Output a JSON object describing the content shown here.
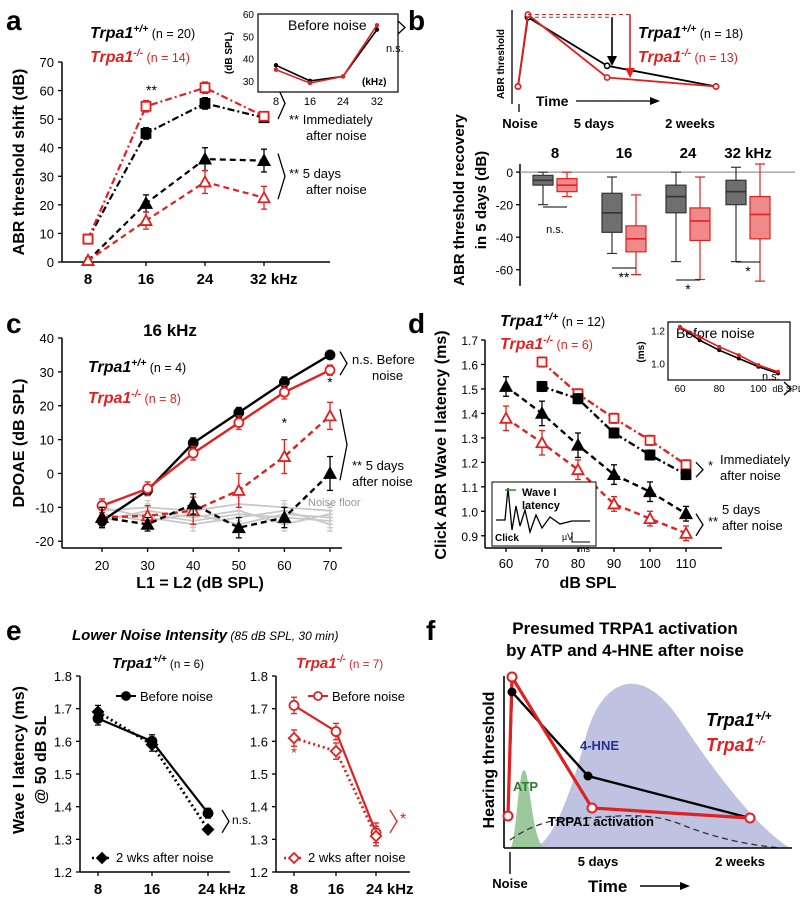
{
  "colors": {
    "wt": "#000000",
    "ko": "#e32020",
    "ko_fill": "#f08a8a",
    "wt_fill": "#6f6f6f",
    "floor": "#c8c8c8",
    "atp": "#9dc89d",
    "hne": "#a9aed6",
    "axis": "#000000",
    "grid_ref": "#999999"
  },
  "chart_data": [
    {
      "panel": "a",
      "type": "line",
      "ylabel": "ABR threshold shift (dB)",
      "categories": [
        "8",
        "16",
        "24",
        "32 kHz"
      ],
      "ylim": [
        0,
        70
      ],
      "yticks": [
        "0",
        "10",
        "20",
        "30",
        "40",
        "50",
        "60",
        "70"
      ],
      "legend": [
        {
          "name": "Trpa1",
          "sup": "+/+",
          "n": "(n = 20)"
        },
        {
          "name": "Trpa1",
          "sup": "-/-",
          "n": "(n = 14)"
        }
      ],
      "series": [
        {
          "name": "WT immediately after noise",
          "group": "wt",
          "marker": "square-filled",
          "style": "dashdot",
          "values": [
            8,
            45,
            55.5,
            50.5
          ],
          "errors": [
            1.5,
            2,
            2,
            1.5
          ]
        },
        {
          "name": "KO immediately after noise",
          "group": "ko",
          "marker": "square-open",
          "style": "dashdot",
          "values": [
            8,
            54.5,
            61,
            51
          ],
          "errors": [
            1.5,
            2,
            2,
            1.5
          ]
        },
        {
          "name": "WT 5 days after noise",
          "group": "wt",
          "marker": "triangle-filled",
          "style": "dashed",
          "values": [
            0.5,
            20.5,
            36,
            35.5
          ],
          "errors": [
            1,
            3,
            4,
            4
          ]
        },
        {
          "name": "KO 5 days after noise",
          "group": "ko",
          "marker": "triangle-open",
          "style": "dashed",
          "values": [
            0.5,
            14.5,
            28,
            22.5
          ],
          "errors": [
            1,
            3,
            4,
            4
          ]
        }
      ],
      "annotations": {
        "sig16": "**",
        "imm_sig": "**",
        "imm_label": [
          "Immediately",
          "after noise"
        ],
        "d5_sig": "**",
        "d5_label": [
          "5 days",
          "after noise"
        ]
      },
      "inset": {
        "title": "Before noise",
        "ylabel": "(dB SPL)",
        "xlabel": "(kHz)",
        "categories": [
          "8",
          "16",
          "24",
          "32"
        ],
        "ylim": [
          25,
          60
        ],
        "yticks": [
          "30",
          "40",
          "50",
          "60"
        ],
        "sig": "n.s.",
        "series": [
          {
            "group": "wt",
            "values": [
              37,
              30,
              32,
              53
            ]
          },
          {
            "group": "ko",
            "values": [
              35,
              29,
              32,
              55
            ]
          }
        ]
      }
    },
    {
      "panel": "b-top",
      "type": "line",
      "ylabel": "ABR threshold",
      "xlabel": "Time",
      "xticks": [
        "Noise",
        "5 days",
        "2 weeks"
      ],
      "legend": [
        {
          "name": "Trpa1",
          "sup": "+/+",
          "n": "(n = 18)"
        },
        {
          "name": "Trpa1",
          "sup": "-/-",
          "n": "(n = 13)"
        }
      ],
      "series": [
        {
          "group": "wt",
          "points": [
            [
              0,
              15
            ],
            [
              0.05,
              92
            ],
            [
              0.45,
              38
            ],
            [
              1,
              15
            ]
          ]
        },
        {
          "group": "ko",
          "points": [
            [
              0,
              15
            ],
            [
              0.05,
              95
            ],
            [
              0.45,
              25
            ],
            [
              1,
              15
            ]
          ]
        }
      ]
    },
    {
      "panel": "b-bottom",
      "type": "box",
      "ylabel": [
        "ABR threshold recovery",
        "in 5 days (dB)"
      ],
      "categories": [
        "8",
        "16",
        "24",
        "32 kHz"
      ],
      "ylim": [
        -70,
        5
      ],
      "yticks": [
        "-60",
        "-40",
        "-20",
        "0"
      ],
      "boxes": [
        {
          "group": "wt",
          "cat": 0,
          "min": -20,
          "q1": -8,
          "med": -5,
          "q3": -2,
          "max": 0
        },
        {
          "group": "ko",
          "cat": 0,
          "min": -15,
          "q1": -12,
          "med": -8,
          "q3": -4,
          "max": 0
        },
        {
          "group": "wt",
          "cat": 1,
          "min": -50,
          "q1": -37,
          "med": -25,
          "q3": -13,
          "max": -3
        },
        {
          "group": "ko",
          "cat": 1,
          "min": -63,
          "q1": -49,
          "med": -41,
          "q3": -33,
          "max": -14
        },
        {
          "group": "wt",
          "cat": 2,
          "min": -55,
          "q1": -25,
          "med": -15,
          "q3": -8,
          "max": 0
        },
        {
          "group": "ko",
          "cat": 2,
          "min": -66,
          "q1": -42,
          "med": -30,
          "q3": -22,
          "max": -3
        },
        {
          "group": "wt",
          "cat": 3,
          "min": -55,
          "q1": -20,
          "med": -12,
          "q3": -5,
          "max": 3
        },
        {
          "group": "ko",
          "cat": 3,
          "min": -67,
          "q1": -41,
          "med": -26,
          "q3": -15,
          "max": 5
        }
      ],
      "significance": [
        "n.s.",
        "**",
        "*",
        "*"
      ]
    },
    {
      "panel": "c",
      "type": "line",
      "title": "16 kHz",
      "ylabel": "DPOAE (dB SPL)",
      "xlabel": "L1 = L2 (dB SPL)",
      "x": [
        20,
        30,
        40,
        50,
        60,
        70
      ],
      "xlim": [
        15,
        75
      ],
      "ylim": [
        -22,
        40
      ],
      "yticks": [
        "-20",
        "-10",
        "0",
        "10",
        "20",
        "30",
        "40"
      ],
      "xticks": [
        "20",
        "30",
        "40",
        "50",
        "60",
        "70"
      ],
      "legend": [
        {
          "name": "Trpa1",
          "sup": "+/+",
          "n": "(n = 4)"
        },
        {
          "name": "Trpa1",
          "sup": "-/-",
          "n": "(n = 8)"
        }
      ],
      "series": [
        {
          "name": "WT before noise",
          "group": "wt",
          "marker": "circle-filled",
          "style": "solid",
          "values": [
            -14,
            -5,
            9,
            18,
            27,
            35
          ],
          "errors": [
            1.5,
            1.5,
            1.5,
            1.5,
            1.5,
            1
          ]
        },
        {
          "name": "KO before noise",
          "group": "ko",
          "marker": "circle-open",
          "style": "solid",
          "values": [
            -9.5,
            -4.5,
            6,
            15,
            24,
            30.5
          ],
          "errors": [
            2,
            2,
            2,
            2,
            2,
            1.5
          ]
        },
        {
          "name": "KO 5 days after noise",
          "group": "ko",
          "marker": "triangle-open",
          "style": "dashed",
          "values": [
            -13,
            -12.5,
            -11,
            -5,
            5,
            17
          ],
          "errors": [
            3,
            3,
            4,
            5,
            5,
            4
          ]
        },
        {
          "name": "WT 5 days after noise",
          "group": "wt",
          "marker": "triangle-filled",
          "style": "dashed",
          "values": [
            -13,
            -15,
            -9,
            -16,
            -13,
            0
          ],
          "errors": [
            3,
            2,
            3,
            3,
            3,
            5
          ]
        }
      ],
      "noise_floor": {
        "label": "Noise floor",
        "lines": [
          [
            -11,
            -10,
            -11,
            -9,
            -10,
            -11
          ],
          [
            -13,
            -12,
            -14,
            -12,
            -13,
            -14
          ],
          [
            -12,
            -14,
            -12,
            -15,
            -12,
            -13
          ],
          [
            -14,
            -11,
            -13,
            -11,
            -15,
            -12
          ],
          [
            -10,
            -13,
            -15,
            -13,
            -11,
            -15
          ]
        ]
      },
      "annotations": {
        "before_sig": "n.s.",
        "before_label": [
          "Before",
          "noise"
        ],
        "d5_sig": "**",
        "d5_label": [
          "5 days",
          "after noise"
        ],
        "star60": "*",
        "star70": "*"
      }
    },
    {
      "panel": "d",
      "type": "line",
      "ylabel": "Click ABR Wave I latency (ms)",
      "xlabel": "dB SPL",
      "x": [
        60,
        70,
        80,
        90,
        100,
        110
      ],
      "xlim": [
        55,
        115
      ],
      "ylim": [
        0.85,
        1.7
      ],
      "yticks": [
        "0.9",
        "1.0",
        "1.1",
        "1.2",
        "1.3",
        "1.4",
        "1.5",
        "1.6",
        "1.7"
      ],
      "xticks": [
        "60",
        "70",
        "80",
        "90",
        "100",
        "110"
      ],
      "legend": [
        {
          "name": "Trpa1",
          "sup": "+/+",
          "n": "(n = 12)"
        },
        {
          "name": "Trpa1",
          "sup": "-/-",
          "n": "(n = 6)"
        }
      ],
      "series": [
        {
          "name": "KO immediately after noise",
          "group": "ko",
          "marker": "square-open",
          "style": "dashdot",
          "values": [
            null,
            1.61,
            1.48,
            1.38,
            1.29,
            1.19
          ],
          "errors": [
            0,
            0.02,
            0.02,
            0.02,
            0.02,
            0.02
          ]
        },
        {
          "name": "WT immediately after noise",
          "group": "wt",
          "marker": "square-filled",
          "style": "dashdot",
          "values": [
            null,
            1.51,
            1.46,
            1.32,
            1.23,
            1.15
          ],
          "errors": [
            0,
            0.02,
            0.02,
            0.02,
            0.02,
            0.02
          ]
        },
        {
          "name": "WT 5 days after noise",
          "group": "wt",
          "marker": "triangle-filled",
          "style": "dashed",
          "values": [
            1.51,
            1.4,
            1.27,
            1.15,
            1.08,
            0.99
          ],
          "errors": [
            0.04,
            0.05,
            0.05,
            0.04,
            0.04,
            0.03
          ]
        },
        {
          "name": "KO 5 days after noise",
          "group": "ko",
          "marker": "triangle-open",
          "style": "dashed",
          "values": [
            1.38,
            1.28,
            1.17,
            1.03,
            0.97,
            0.91
          ],
          "errors": [
            0.05,
            0.05,
            0.04,
            0.03,
            0.03,
            0.03
          ]
        }
      ],
      "annotations": {
        "imm_sig": "*",
        "imm_label": [
          "Immediately",
          "after noise"
        ],
        "d5_sig": "**",
        "d5_label": [
          "5 days",
          "after noise"
        ]
      },
      "inset": {
        "title": "Before noise",
        "ylabel": "(ms)",
        "xlabel": "dB SPL",
        "sig": "n.s.",
        "x": [
          60,
          70,
          80,
          90,
          100,
          110
        ],
        "xticks": [
          "60",
          "80",
          "100"
        ],
        "ylim": [
          0.9,
          1.25
        ],
        "yticks": [
          "1.0",
          "1.2"
        ],
        "series": [
          {
            "group": "wt",
            "values": [
              1.22,
              1.14,
              1.08,
              1.03,
              0.98,
              0.94
            ]
          },
          {
            "group": "ko",
            "values": [
              1.22,
              1.16,
              1.1,
              1.05,
              0.99,
              0.95
            ]
          }
        ]
      },
      "waveform": {
        "labels": [
          "Wave I",
          "latency"
        ],
        "click": "Click",
        "scale_uv": "µV",
        "scale_ms": "ms"
      }
    },
    {
      "panel": "e",
      "type": "line",
      "title": "Lower Noise Intensity",
      "title_detail": "(85 dB SPL, 30 min)",
      "ylabel": [
        "Wave I latency (ms)",
        "@ 50 dB SL"
      ],
      "categories": [
        "8",
        "16",
        "24 kHz"
      ],
      "ylim": [
        1.2,
        1.8
      ],
      "yticks": [
        "1.2",
        "1.3",
        "1.4",
        "1.5",
        "1.6",
        "1.7",
        "1.8"
      ],
      "subplots": [
        {
          "legend": {
            "name": "Trpa1",
            "sup": "+/+",
            "n": "(n = 6)"
          },
          "group": "wt",
          "sig": "n.s.",
          "before": {
            "label": "Before noise",
            "values": [
              1.67,
              1.6,
              1.38
            ],
            "errors": [
              0.02,
              0.02,
              0.015
            ]
          },
          "after": {
            "label": "2 wks after noise",
            "values": [
              1.69,
              1.59,
              1.33
            ],
            "errors": [
              0.02,
              0.02,
              0.01
            ]
          }
        },
        {
          "legend": {
            "name": "Trpa1",
            "sup": "-/-",
            "n": "(n = 7)"
          },
          "group": "ko",
          "sig": "*",
          "before": {
            "label": "Before noise",
            "values": [
              1.71,
              1.63,
              1.32
            ],
            "errors": [
              0.025,
              0.025,
              0.03
            ]
          },
          "after": {
            "label": "2 wks after noise",
            "values": [
              1.61,
              1.57,
              1.31
            ],
            "errors": [
              0.025,
              0.025,
              0.03
            ]
          },
          "point_sig": "*"
        }
      ]
    },
    {
      "panel": "f",
      "type": "schematic",
      "title": [
        "Presumed TRPA1 activation",
        "by ATP and 4-HNE after noise"
      ],
      "ylabel": "Hearing threshold",
      "xlabel": "Time",
      "xticks": [
        "Noise",
        "5 days",
        "2 weeks"
      ],
      "regions": [
        "ATP",
        "4-HNE",
        "TRPA1 activation"
      ],
      "legend": [
        {
          "name": "Trpa1",
          "sup": "+/+"
        },
        {
          "name": "Trpa1",
          "sup": "-/-"
        }
      ]
    }
  ],
  "panel_labels": [
    "a",
    "b",
    "c",
    "d",
    "e",
    "f"
  ]
}
